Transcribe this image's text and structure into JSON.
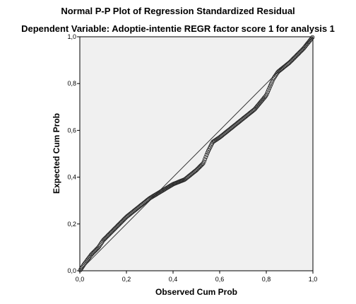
{
  "chart_data": {
    "type": "scatter",
    "title": "Normal P-P Plot of Regression Standardized Residual",
    "subtitle": "Dependent Variable: Adoptie-intentie REGR factor score   1 for analysis 1",
    "xlabel": "Observed Cum Prob",
    "ylabel": "Expected Cum Prob",
    "xlim": [
      0,
      1
    ],
    "ylim": [
      0,
      1
    ],
    "x_ticks": [
      0,
      0.2,
      0.4,
      0.6,
      0.8,
      1
    ],
    "y_ticks": [
      0,
      0.2,
      0.4,
      0.6,
      0.8,
      1
    ],
    "x_tick_labels": [
      "0,0",
      "0,2",
      "0,4",
      "0,6",
      "0,8",
      "1,0"
    ],
    "y_tick_labels": [
      "0,0",
      "0,2",
      "0,4",
      "0,6",
      "0,8",
      "1,0"
    ],
    "grid": false,
    "reference_line": {
      "from": [
        0,
        0
      ],
      "to": [
        1,
        1
      ]
    },
    "colors": {
      "plot_background": "#f0f0f0",
      "marker_stroke": "#2a2a2a",
      "line": "#333333"
    },
    "curve_points": [
      [
        0,
        0
      ],
      [
        0.02,
        0.03
      ],
      [
        0.05,
        0.07
      ],
      [
        0.08,
        0.1
      ],
      [
        0.1,
        0.13
      ],
      [
        0.13,
        0.16
      ],
      [
        0.17,
        0.2
      ],
      [
        0.2,
        0.23
      ],
      [
        0.25,
        0.27
      ],
      [
        0.3,
        0.31
      ],
      [
        0.35,
        0.34
      ],
      [
        0.4,
        0.37
      ],
      [
        0.45,
        0.39
      ],
      [
        0.5,
        0.43
      ],
      [
        0.53,
        0.46
      ],
      [
        0.55,
        0.51
      ],
      [
        0.57,
        0.55
      ],
      [
        0.6,
        0.57
      ],
      [
        0.65,
        0.61
      ],
      [
        0.7,
        0.65
      ],
      [
        0.75,
        0.69
      ],
      [
        0.8,
        0.75
      ],
      [
        0.83,
        0.82
      ],
      [
        0.85,
        0.85
      ],
      [
        0.9,
        0.89
      ],
      [
        0.93,
        0.92
      ],
      [
        0.96,
        0.95
      ],
      [
        1,
        1
      ]
    ],
    "n_points": 260
  }
}
